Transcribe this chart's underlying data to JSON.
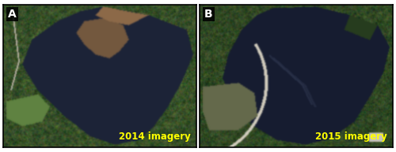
{
  "label_A": "A",
  "label_B": "B",
  "text_left": "2014 imagery",
  "text_right": "2015 imagery",
  "text_color": "#ffff00",
  "border_color": "#000000",
  "background_color": "#ffffff",
  "text_fontsize": 8.5,
  "label_fontsize": 10,
  "fig_width": 5.0,
  "fig_height": 1.93,
  "dpi": 100
}
